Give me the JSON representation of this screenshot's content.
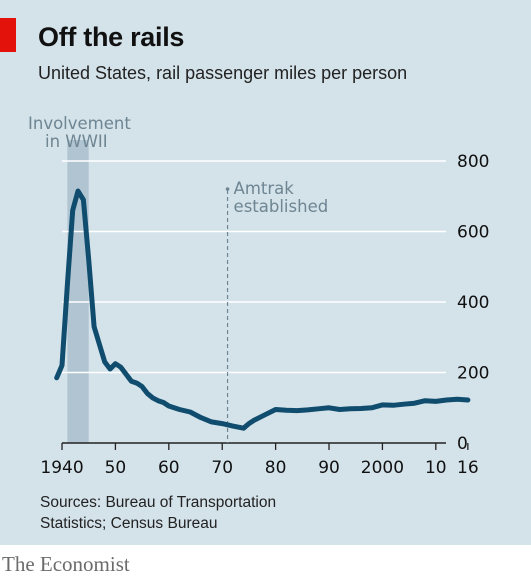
{
  "title": "Off the rails",
  "subtitle": "United States, rail passenger miles per person",
  "sources": {
    "line1": "Sources: Bureau of Transportation",
    "line2": "Statistics; Census Bureau"
  },
  "brand": "The Economist",
  "colors": {
    "background": "#d4e2ea",
    "line": "#0f4c6e",
    "accent_red": "#e3120b",
    "shade": "#a9bfcc",
    "annotation": "#6e8592"
  },
  "chart_data": {
    "type": "line",
    "xlim": [
      1937,
      2016
    ],
    "ylim": [
      0,
      800
    ],
    "y_ticks": [
      0,
      200,
      400,
      600,
      800
    ],
    "y_tick_labels": [
      "0",
      "200",
      "400",
      "600",
      "800"
    ],
    "x_ticks": [
      1940,
      1950,
      1960,
      1970,
      1980,
      1990,
      2000,
      2010,
      2016
    ],
    "x_tick_labels": [
      "1940",
      "50",
      "60",
      "70",
      "80",
      "90",
      "2000",
      "10",
      "16"
    ],
    "y_axis_side": "right",
    "grid": "horizontal",
    "series": [
      {
        "x": [
          1939,
          1940,
          1941,
          1942,
          1943,
          1944,
          1945,
          1946,
          1947,
          1948,
          1949,
          1950,
          1951,
          1952,
          1953,
          1954,
          1955,
          1956,
          1957,
          1958,
          1959,
          1960,
          1962,
          1964,
          1966,
          1968,
          1970,
          1972,
          1974,
          1975,
          1976,
          1978,
          1980,
          1982,
          1984,
          1986,
          1988,
          1990,
          1992,
          1994,
          1996,
          1998,
          2000,
          2002,
          2004,
          2006,
          2008,
          2010,
          2012,
          2014,
          2016
        ],
        "y": [
          185,
          220,
          450,
          660,
          715,
          690,
          520,
          330,
          280,
          230,
          210,
          225,
          215,
          195,
          175,
          170,
          160,
          140,
          128,
          120,
          115,
          105,
          95,
          88,
          72,
          60,
          55,
          48,
          42,
          55,
          65,
          80,
          95,
          93,
          92,
          94,
          97,
          100,
          95,
          97,
          98,
          100,
          108,
          107,
          110,
          113,
          120,
          118,
          122,
          124,
          122
        ]
      }
    ],
    "annotations": [
      {
        "label_lines": [
          "Involvement",
          "in WWII"
        ],
        "x_start": 1941,
        "x_end": 1945
      },
      {
        "label_lines": [
          "Amtrak",
          "established"
        ],
        "x": 1971
      }
    ]
  }
}
